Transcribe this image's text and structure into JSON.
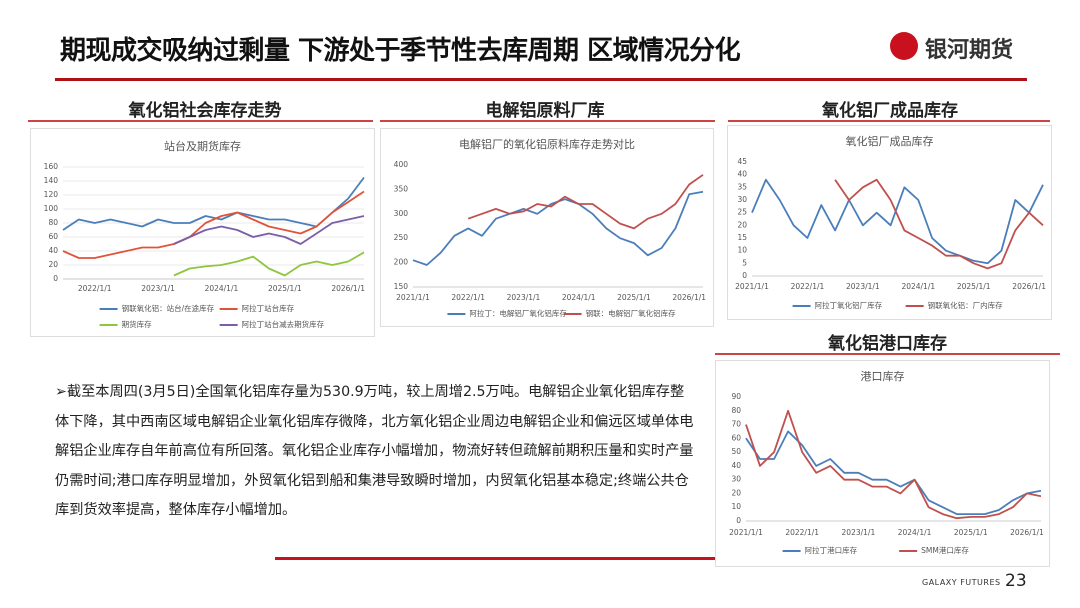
{
  "header": {
    "title": "期现成交吸纳过剩量  下游处于季节性去库周期 区域情况分化",
    "logo": "银河期货"
  },
  "sections": [
    "氧化铝社会库存走势",
    "电解铝原料厂库",
    "氧化铝厂成品库存",
    "氧化铝港口库存"
  ],
  "text": {
    "bullet": "➢",
    "paragraph": "截至本周四(3月5日)全国氧化铝库存量为530.9万吨，较上周增2.5万吨。电解铝企业氧化铝库存整体下降，其中西南区域电解铝企业氧化铝库存微降，北方氧化铝企业周边电解铝企业和偏远区域单体电解铝企业库存自年前高位有所回落。氧化铝企业库存小幅增加，物流好转但疏解前期积压量和实时产量仍需时间;港口库存明显增加，外贸氧化铝到船和集港导致瞬时增加，内贸氧化铝基本稳定;终端公共仓库到货效率提高，整体库存小幅增加。"
  },
  "footer": {
    "brand": "GALAXY FUTURES",
    "page": "23"
  },
  "chart_data": [
    {
      "type": "line",
      "title": "站台及期货库存",
      "grid": true,
      "categories": [
        null,
        null,
        "2022/1/1",
        null,
        null,
        null,
        "2023/1/1",
        null,
        null,
        null,
        "2024/1/1",
        null,
        null,
        null,
        "2025/1/1",
        null,
        null,
        null,
        "2026/1/1",
        null
      ],
      "ylim": [
        0,
        160
      ],
      "yticks": [
        0,
        20,
        40,
        60,
        80,
        100,
        120,
        140,
        160
      ],
      "series": [
        {
          "name": "钢联氧化铝：站台/在途库存",
          "color": "#4a7ebb",
          "values": [
            70,
            85,
            80,
            85,
            80,
            75,
            85,
            80,
            80,
            90,
            85,
            95,
            90,
            85,
            85,
            80,
            75,
            95,
            115,
            145
          ]
        },
        {
          "name": "阿拉丁站台库存",
          "color": "#e0533a",
          "values": [
            40,
            30,
            30,
            35,
            40,
            45,
            45,
            50,
            60,
            80,
            90,
            95,
            85,
            75,
            70,
            65,
            75,
            95,
            110,
            125
          ]
        },
        {
          "name": "期货库存",
          "color": "#8dc63f",
          "values": [
            null,
            null,
            null,
            null,
            null,
            null,
            null,
            5,
            15,
            18,
            20,
            25,
            32,
            15,
            5,
            20,
            25,
            20,
            25,
            38
          ]
        },
        {
          "name": "阿拉丁站台减去期货库存",
          "color": "#7b5ea7",
          "values": [
            null,
            null,
            null,
            null,
            null,
            null,
            null,
            50,
            60,
            70,
            75,
            70,
            60,
            65,
            60,
            50,
            65,
            80,
            85,
            90
          ]
        }
      ]
    },
    {
      "type": "line",
      "title": "电解铝厂的氧化铝原料库存走势对比",
      "categories": [
        "2021/1/1",
        null,
        null,
        null,
        "2022/1/1",
        null,
        null,
        null,
        "2023/1/1",
        null,
        null,
        null,
        "2024/1/1",
        null,
        null,
        null,
        "2025/1/1",
        null,
        null,
        null,
        "2026/1/1",
        null
      ],
      "ylim": [
        150,
        400
      ],
      "yticks": [
        150,
        200,
        250,
        300,
        350,
        400
      ],
      "series": [
        {
          "name": "阿拉丁：电解铝厂氧化铝库存",
          "color": "#4a7ebb",
          "values": [
            205,
            195,
            220,
            255,
            270,
            255,
            290,
            300,
            310,
            300,
            320,
            330,
            320,
            300,
            270,
            250,
            240,
            215,
            230,
            270,
            340,
            345
          ]
        },
        {
          "name": "钢联：电解铝厂氧化铝库存",
          "color": "#c0504d",
          "values": [
            null,
            null,
            null,
            null,
            290,
            300,
            310,
            300,
            305,
            320,
            315,
            335,
            320,
            320,
            300,
            280,
            270,
            290,
            300,
            320,
            360,
            380
          ]
        }
      ]
    },
    {
      "type": "line",
      "title": "氧化铝厂成品库存",
      "categories": [
        "2021/1/1",
        null,
        null,
        null,
        "2022/1/1",
        null,
        null,
        null,
        "2023/1/1",
        null,
        null,
        null,
        "2024/1/1",
        null,
        null,
        null,
        "2025/1/1",
        null,
        null,
        null,
        "2026/1/1",
        null
      ],
      "ylim": [
        0,
        45
      ],
      "yticks": [
        0,
        5,
        10,
        15,
        20,
        25,
        30,
        35,
        40,
        45
      ],
      "series": [
        {
          "name": "阿拉丁氧化铝厂库存",
          "color": "#4a7ebb",
          "values": [
            25,
            38,
            30,
            20,
            15,
            28,
            18,
            30,
            20,
            25,
            20,
            35,
            30,
            15,
            10,
            8,
            6,
            5,
            10,
            30,
            25,
            36
          ]
        },
        {
          "name": "钢联氧化铝：厂内库存",
          "color": "#c0504d",
          "values": [
            null,
            null,
            null,
            null,
            null,
            null,
            38,
            30,
            35,
            38,
            30,
            18,
            15,
            12,
            8,
            8,
            5,
            3,
            5,
            18,
            25,
            20
          ]
        }
      ]
    },
    {
      "type": "line",
      "title": "港口库存",
      "categories": [
        "2021/1/1",
        null,
        null,
        null,
        "2022/1/1",
        null,
        null,
        null,
        "2023/1/1",
        null,
        null,
        null,
        "2024/1/1",
        null,
        null,
        null,
        "2025/1/1",
        null,
        null,
        null,
        "2026/1/1",
        null
      ],
      "ylim": [
        0,
        90
      ],
      "yticks": [
        0,
        10,
        20,
        30,
        40,
        50,
        60,
        70,
        80,
        90
      ],
      "series": [
        {
          "name": "阿拉丁港口库存",
          "color": "#4a7ebb",
          "values": [
            60,
            45,
            45,
            65,
            55,
            40,
            45,
            35,
            35,
            30,
            30,
            25,
            30,
            15,
            10,
            5,
            5,
            5,
            8,
            15,
            20,
            22
          ]
        },
        {
          "name": "SMM港口库存",
          "color": "#c0504d",
          "values": [
            70,
            40,
            50,
            80,
            50,
            35,
            40,
            30,
            30,
            25,
            25,
            20,
            30,
            10,
            5,
            2,
            3,
            3,
            5,
            10,
            20,
            18
          ]
        }
      ]
    }
  ]
}
